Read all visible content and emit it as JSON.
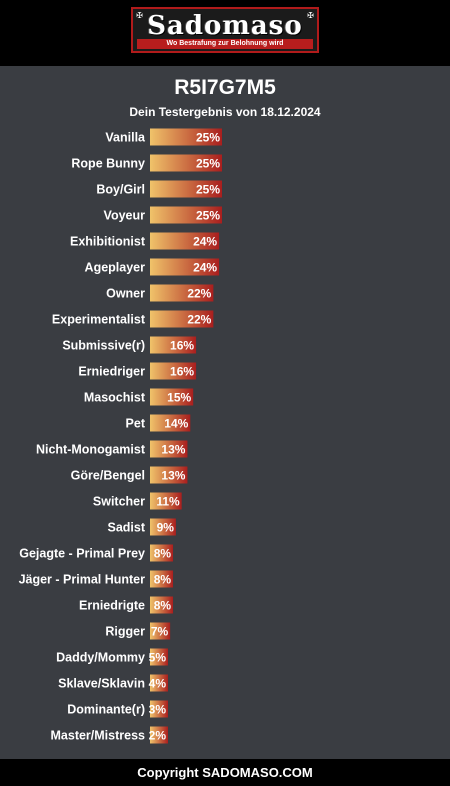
{
  "header": {
    "logo_text": "Sadomaso",
    "logo_subtitle": "Wo Bestrafung zur Belohnung wird",
    "logo_corner_icon": "cross-icon"
  },
  "result": {
    "title": "R5I7G7M5",
    "subtitle": "Dein Testergebnis von 18.12.2024"
  },
  "chart_data": {
    "type": "bar",
    "orientation": "horizontal",
    "categories": [
      "Vanilla",
      "Rope Bunny",
      "Boy/Girl",
      "Voyeur",
      "Exhibitionist",
      "Ageplayer",
      "Owner",
      "Experimentalist",
      "Submissive(r)",
      "Erniedriger",
      "Masochist",
      "Pet",
      "Nicht-Monogamist",
      "Göre/Bengel",
      "Switcher",
      "Sadist",
      "Gejagte - Primal Prey",
      "Jäger - Primal Hunter",
      "Erniedrigte",
      "Rigger",
      "Daddy/Mommy",
      "Sklave/Sklavin",
      "Dominante(r)",
      "Master/Mistress"
    ],
    "values": [
      25,
      25,
      25,
      25,
      24,
      24,
      22,
      22,
      16,
      16,
      15,
      14,
      13,
      13,
      11,
      9,
      8,
      8,
      8,
      7,
      5,
      4,
      3,
      2
    ],
    "value_suffix": "%",
    "xlim": [
      0,
      100
    ],
    "grid": false,
    "bar_gradient": [
      "#f0c36a",
      "#a91e1e"
    ]
  },
  "footer": {
    "copyright": "Copyright SADOMASO.COM"
  }
}
